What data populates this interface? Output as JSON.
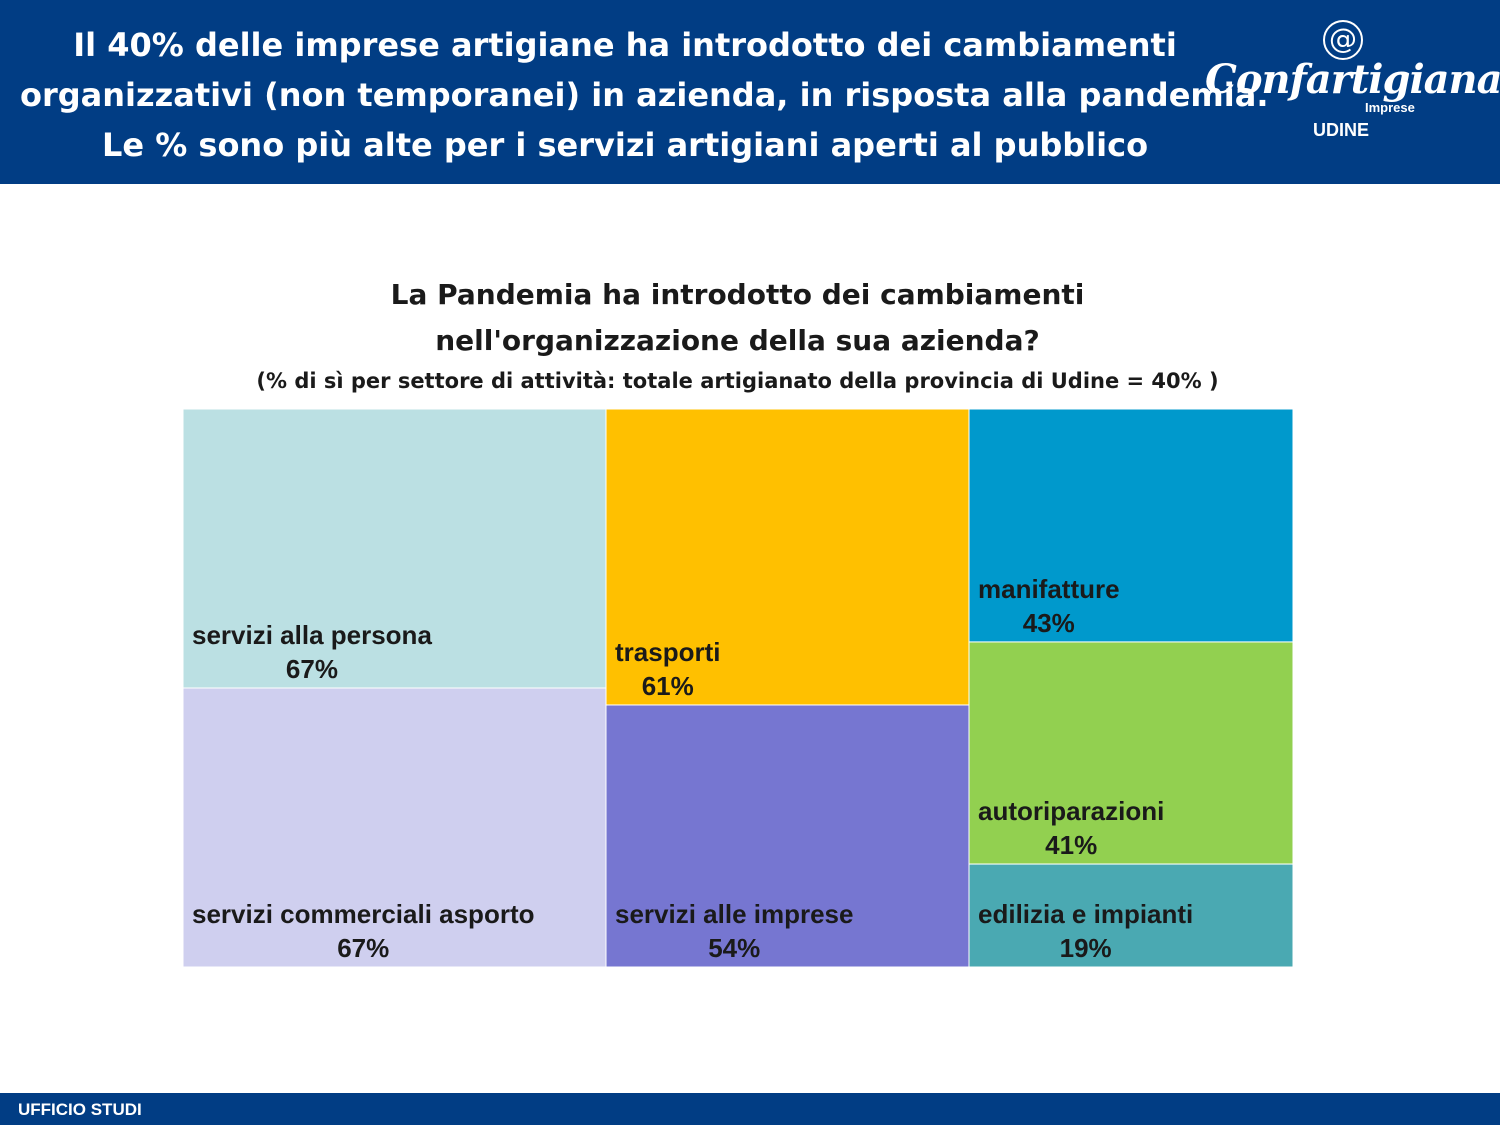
{
  "header": {
    "title_lines": [
      "Il 40% delle imprese artigiane ha introdotto dei cambiamenti",
      "organizzativi (non temporanei) in azienda, in risposta alla pandemia.",
      "Le % sono più alte per i servizi artigiani aperti al pubblico"
    ],
    "logo": {
      "symbol": "@",
      "name": "Confartigianato",
      "sub": "Imprese",
      "city": "UDINE"
    }
  },
  "footer": {
    "label": "UFFICIO STUDI"
  },
  "colors": {
    "brand": "#013d84"
  },
  "chart_data": {
    "type": "treemap",
    "title_lines": [
      "La Pandemia ha introdotto dei cambiamenti",
      "nell'organizzazione della sua azienda?"
    ],
    "subtitle": "(% di sì per settore di attività: totale artigianato della provincia di Udine = 40% )",
    "unit": "%",
    "items": [
      {
        "label": "servizi alla persona",
        "value": 67,
        "display": "67%",
        "color": "#bbe0e3"
      },
      {
        "label": "servizi commerciali asporto",
        "value": 67,
        "display": "67%",
        "color": "#cfcfef"
      },
      {
        "label": "trasporti",
        "value": 61,
        "display": "61%",
        "color": "#ffc000"
      },
      {
        "label": "servizi alle imprese",
        "value": 54,
        "display": "54%",
        "color": "#7676d1"
      },
      {
        "label": "manifatture",
        "value": 43,
        "display": "43%",
        "color": "#0099cc"
      },
      {
        "label": "autoriparazioni",
        "value": 41,
        "display": "41%",
        "color": "#92d050"
      },
      {
        "label": "edilizia e impianti",
        "value": 19,
        "display": "19%",
        "color": "#4aa9b2"
      }
    ]
  }
}
